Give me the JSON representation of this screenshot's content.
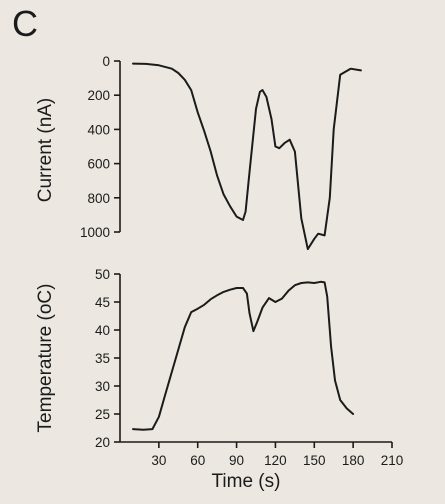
{
  "panel_label": "C",
  "chart_data": [
    {
      "type": "line",
      "title": "",
      "xlabel": "",
      "ylabel": "Current (nA)",
      "y_inverted": true,
      "ylim": [
        0,
        1000
      ],
      "yticks": [
        0,
        200,
        400,
        600,
        800,
        1000
      ],
      "xlim": [
        0,
        210
      ],
      "grid": false,
      "series": [
        {
          "x": [
            10,
            20,
            30,
            40,
            45,
            50,
            55,
            60,
            65,
            70,
            75,
            80,
            85,
            90,
            95,
            97,
            100,
            105,
            108,
            110,
            113,
            117,
            120,
            123,
            127,
            131,
            135,
            140,
            145,
            150,
            153,
            158,
            162,
            165,
            170,
            178,
            186
          ],
          "y": [
            15,
            17,
            25,
            45,
            70,
            110,
            170,
            300,
            410,
            530,
            670,
            780,
            850,
            910,
            930,
            880,
            650,
            280,
            180,
            170,
            210,
            340,
            500,
            510,
            480,
            460,
            530,
            920,
            1100,
            1040,
            1010,
            1020,
            800,
            400,
            80,
            45,
            55
          ]
        }
      ]
    },
    {
      "type": "line",
      "title": "",
      "xlabel": "Time (s)",
      "ylabel": "Temperature (oC)",
      "ylim": [
        20,
        50
      ],
      "yticks": [
        20,
        25,
        30,
        35,
        40,
        45,
        50
      ],
      "xlim": [
        0,
        210
      ],
      "xticks": [
        30,
        60,
        90,
        120,
        150,
        180,
        210
      ],
      "grid": false,
      "series": [
        {
          "x": [
            10,
            18,
            25,
            30,
            35,
            40,
            45,
            50,
            55,
            60,
            65,
            70,
            75,
            80,
            85,
            90,
            95,
            98,
            100,
            103,
            106,
            110,
            115,
            120,
            125,
            130,
            135,
            140,
            145,
            150,
            155,
            158,
            160,
            163,
            166,
            170,
            175,
            180
          ],
          "y": [
            22.3,
            22.2,
            22.3,
            24.5,
            28.5,
            32.5,
            36.5,
            40.5,
            43.2,
            43.8,
            44.5,
            45.5,
            46.2,
            46.8,
            47.2,
            47.5,
            47.5,
            46.5,
            43.0,
            39.8,
            41.5,
            44.0,
            45.7,
            45.0,
            45.6,
            47.0,
            48.0,
            48.4,
            48.5,
            48.4,
            48.6,
            48.5,
            46.0,
            37.0,
            31.0,
            27.5,
            26.0,
            25.0
          ]
        }
      ]
    }
  ]
}
